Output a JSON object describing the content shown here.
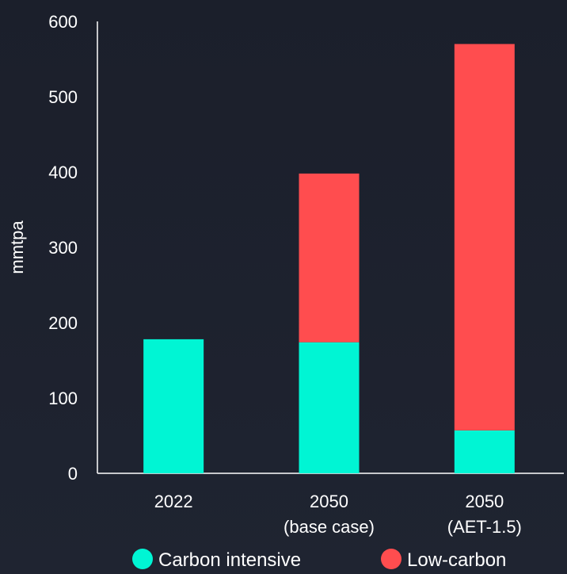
{
  "chart_data": {
    "type": "bar",
    "stacked": true,
    "categories": [
      [
        "2022"
      ],
      [
        "2050",
        "(base case)"
      ],
      [
        "2050",
        "(AET-1.5)"
      ]
    ],
    "series": [
      {
        "name": "Carbon intensive",
        "values": [
          178,
          174,
          57
        ],
        "color": "#00f5d4"
      },
      {
        "name": "Low-carbon",
        "values": [
          0,
          224,
          513
        ],
        "color": "#ff4d4f"
      }
    ],
    "ylabel": "mmtpa",
    "xlabel": "",
    "ylim": [
      0,
      600
    ],
    "yticks": [
      0,
      100,
      200,
      300,
      400,
      500,
      600
    ],
    "grid": false,
    "legend_position": "bottom"
  }
}
